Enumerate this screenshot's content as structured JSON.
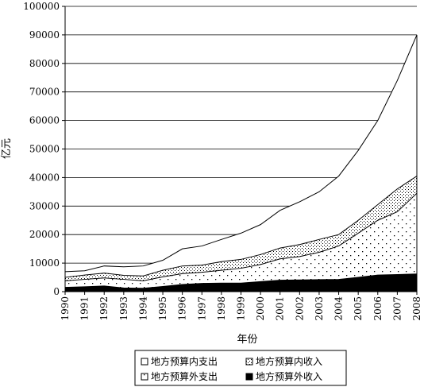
{
  "chart_data": {
    "type": "area",
    "ylabel": "亿元",
    "xlabel": "年份",
    "ylim": [
      0,
      100000
    ],
    "yticks": [
      0,
      10000,
      20000,
      30000,
      40000,
      50000,
      60000,
      70000,
      80000,
      90000,
      100000
    ],
    "ytick_labels": [
      "0",
      "10000",
      "20000",
      "30000",
      "40000",
      "50000",
      "60000",
      "70000",
      "80000",
      "90000",
      "100000"
    ],
    "categories": [
      "1990",
      "1991",
      "1992",
      "1993",
      "1994",
      "1995",
      "1996",
      "1997",
      "1998",
      "1999",
      "2000",
      "2001",
      "2002",
      "2003",
      "2004",
      "2005",
      "2006",
      "2007",
      "2008"
    ],
    "grid": true,
    "legend_position": "bottom",
    "stacked": false,
    "series": [
      {
        "name": "地方预算内支出",
        "fill": "white",
        "values": [
          7000,
          7300,
          9000,
          8700,
          9000,
          11000,
          15000,
          16000,
          18300,
          20500,
          23500,
          28500,
          31500,
          35000,
          40500,
          49500,
          60000,
          74000,
          90000
        ]
      },
      {
        "name": "地方预算内收入",
        "fill": "fine-dots",
        "values": [
          5000,
          5800,
          6500,
          5700,
          5500,
          7500,
          9000,
          9300,
          10500,
          11300,
          13000,
          15300,
          16500,
          18300,
          20000,
          25000,
          30500,
          36000,
          40500
        ]
      },
      {
        "name": "地方预算外支出",
        "fill": "coarse-dots",
        "values": [
          3800,
          4300,
          4800,
          4300,
          3800,
          5200,
          6300,
          6800,
          7500,
          8200,
          9500,
          11500,
          12300,
          13800,
          16000,
          20500,
          25000,
          28000,
          34500
        ]
      },
      {
        "name": "地方预算外收入",
        "fill": "black",
        "values": [
          1500,
          1700,
          2000,
          1300,
          1200,
          1800,
          2500,
          2900,
          3000,
          3000,
          3500,
          4000,
          4100,
          4200,
          4300,
          5000,
          5800,
          6000,
          6200
        ]
      }
    ]
  }
}
